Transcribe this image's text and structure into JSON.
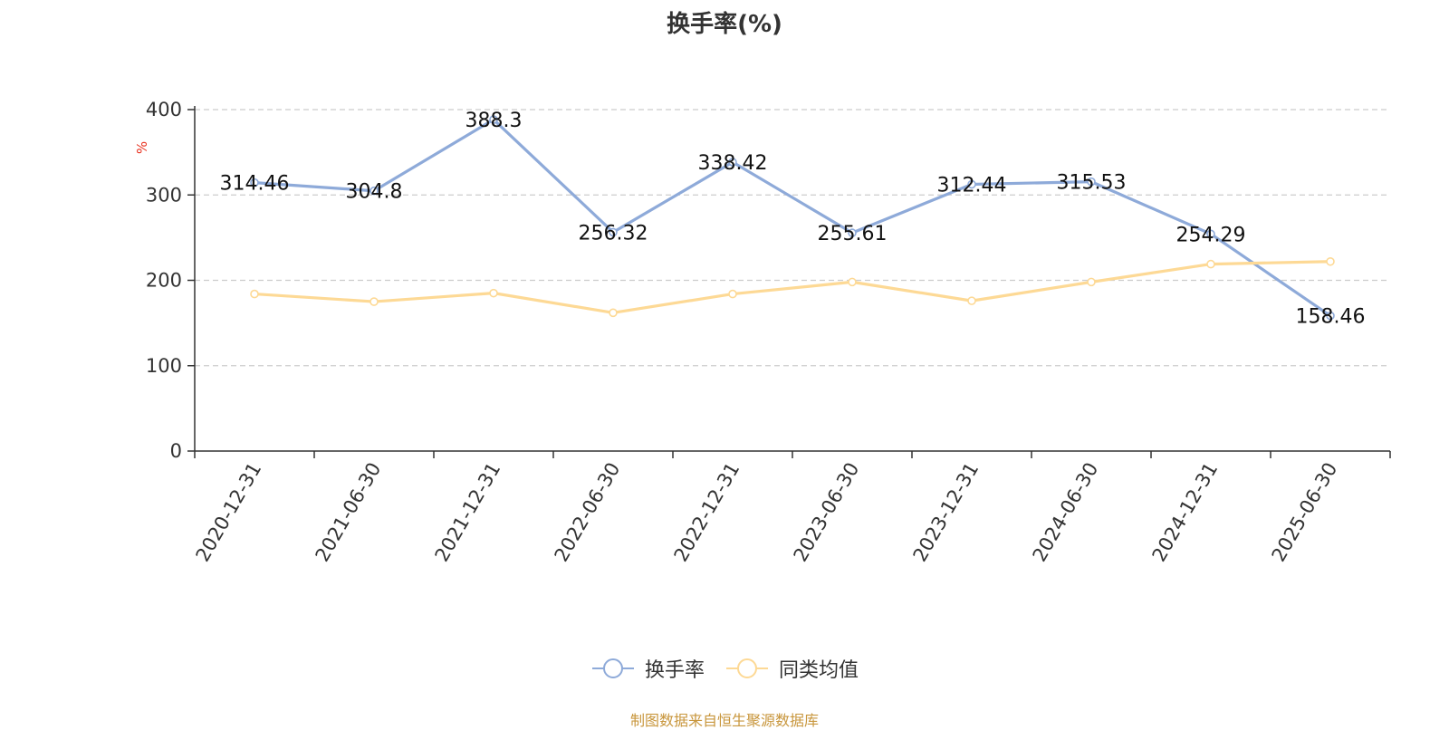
{
  "chart_data": {
    "type": "line",
    "title": "换手率(%)",
    "ylabel": "%",
    "xlabel": "",
    "ylim": [
      0,
      400
    ],
    "yticks": [
      0,
      100,
      200,
      300,
      400
    ],
    "categories": [
      "2020-12-31",
      "2021-06-30",
      "2021-12-31",
      "2022-06-30",
      "2022-12-31",
      "2023-06-30",
      "2023-12-31",
      "2024-06-30",
      "2024-12-31",
      "2025-06-30"
    ],
    "series": [
      {
        "name": "换手率",
        "color": "#8eaad9",
        "show_labels": true,
        "values": [
          314.46,
          304.8,
          388.3,
          256.32,
          338.42,
          255.61,
          312.44,
          315.53,
          254.29,
          158.46
        ]
      },
      {
        "name": "同类均值",
        "color": "#fdd995",
        "show_labels": false,
        "values": [
          184,
          175,
          185,
          162,
          184,
          198,
          176,
          198,
          219,
          222
        ]
      }
    ],
    "grid": true,
    "legend_position": "bottom-center"
  },
  "source_note": "制图数据来自恒生聚源数据库"
}
